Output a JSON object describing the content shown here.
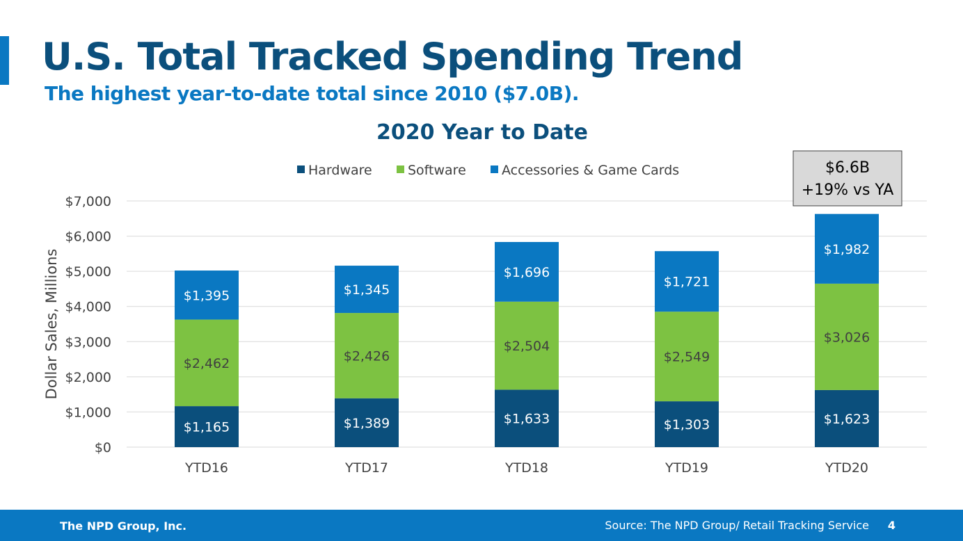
{
  "slide": {
    "title": "U.S. Total Tracked Spending Trend",
    "subtitle": "The highest year-to-date total since 2010 ($7.0B)."
  },
  "colors": {
    "title": "#0b4f7c",
    "accent": "#0a78c2",
    "hardware": "#0b4f7c",
    "software": "#7dc242",
    "accessories": "#0a78c2",
    "callout_bg": "#d9d9d9"
  },
  "chart_data": {
    "type": "bar",
    "stacked": true,
    "title": "2020 Year to Date",
    "xlabel": "",
    "ylabel": "Dollar Sales, Millions",
    "ylim": [
      0,
      7000
    ],
    "yticks": [
      0,
      1000,
      2000,
      3000,
      4000,
      5000,
      6000,
      7000
    ],
    "ytick_labels": [
      "$0",
      "$1,000",
      "$2,000",
      "$3,000",
      "$4,000",
      "$5,000",
      "$6,000",
      "$7,000"
    ],
    "categories": [
      "YTD16",
      "YTD17",
      "YTD18",
      "YTD19",
      "YTD20"
    ],
    "legend_position": "top",
    "series": [
      {
        "name": "Hardware",
        "values": [
          1165,
          1389,
          1633,
          1303,
          1623
        ],
        "labels": [
          "$1,165",
          "$1,389",
          "$1,633",
          "$1,303",
          "$1,623"
        ],
        "label_color": "#ffffff"
      },
      {
        "name": "Software",
        "values": [
          2462,
          2426,
          2504,
          2549,
          3026
        ],
        "labels": [
          "$2,462",
          "$2,426",
          "$2,504",
          "$2,549",
          "$3,026"
        ],
        "label_color": "#404040"
      },
      {
        "name": "Accessories & Game Cards",
        "values": [
          1395,
          1345,
          1696,
          1721,
          1982
        ],
        "labels": [
          "$1,395",
          "$1,345",
          "$1,696",
          "$1,721",
          "$1,982"
        ],
        "label_color": "#ffffff"
      }
    ],
    "annotation": {
      "category": "YTD20",
      "line1": "$6.6B",
      "line2": "+19% vs YA"
    }
  },
  "footer": {
    "company": "The NPD Group, Inc.",
    "source": "Source: The NPD Group/ Retail Tracking Service",
    "page": "4"
  }
}
